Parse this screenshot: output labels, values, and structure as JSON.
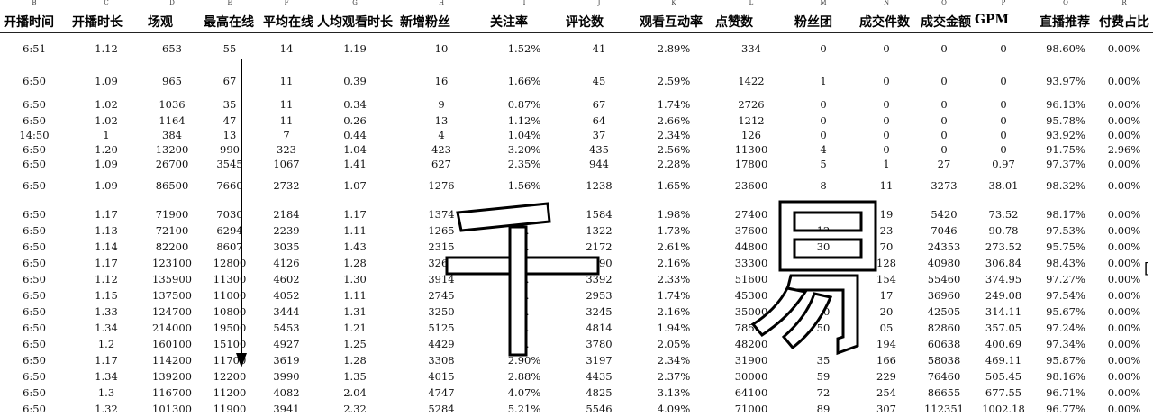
{
  "column_letters": [
    "B",
    "C",
    "D",
    "E",
    "F",
    "G",
    "H",
    "I",
    "J",
    "K",
    "L",
    "M",
    "N",
    "O",
    "P",
    "Q",
    "R"
  ],
  "headers": [
    "开播时间",
    "开播时长",
    "场观",
    "最高在线",
    "平均在线",
    "人均观看时长",
    "新增粉丝",
    "关注率",
    "评论数",
    "观看互动率",
    "点赞数",
    "粉丝团",
    "成交件数",
    "成交金额",
    "GPM",
    "直播推荐",
    "付费占比"
  ],
  "rows": [
    [
      "6:51",
      "1.12",
      "653",
      "55",
      "14",
      "1.19",
      "10",
      "1.52%",
      "41",
      "2.89%",
      "334",
      "0",
      "0",
      "0",
      "0",
      "98.60%",
      "0.00%"
    ],
    [
      "6:50",
      "1.09",
      "965",
      "67",
      "11",
      "0.39",
      "16",
      "1.66%",
      "45",
      "2.59%",
      "1422",
      "1",
      "0",
      "0",
      "0",
      "93.97%",
      "0.00%"
    ],
    [
      "6:50",
      "1.02",
      "1036",
      "35",
      "11",
      "0.34",
      "9",
      "0.87%",
      "67",
      "1.74%",
      "2726",
      "0",
      "0",
      "0",
      "0",
      "96.13%",
      "0.00%"
    ],
    [
      "6:50",
      "1.02",
      "1164",
      "47",
      "11",
      "0.26",
      "13",
      "1.12%",
      "64",
      "2.66%",
      "1212",
      "0",
      "0",
      "0",
      "0",
      "95.78%",
      "0.00%"
    ],
    [
      "14:50",
      "1",
      "384",
      "13",
      "7",
      "0.44",
      "4",
      "1.04%",
      "37",
      "2.34%",
      "126",
      "0",
      "0",
      "0",
      "0",
      "93.92%",
      "0.00%"
    ],
    [
      "6:50",
      "1.20",
      "13200",
      "990",
      "323",
      "1.04",
      "423",
      "3.20%",
      "435",
      "2.56%",
      "11300",
      "4",
      "0",
      "0",
      "0",
      "91.75%",
      "2.96%"
    ],
    [
      "6:50",
      "1.09",
      "26700",
      "3545",
      "1067",
      "1.41",
      "627",
      "2.35%",
      "944",
      "2.28%",
      "17800",
      "5",
      "1",
      "27",
      "0.97",
      "97.37%",
      "0.00%"
    ],
    [
      "6:50",
      "1.09",
      "86500",
      "7660",
      "2732",
      "1.07",
      "1276",
      "1.56%",
      "1238",
      "1.65%",
      "23600",
      "8",
      "11",
      "3273",
      "38.01",
      "98.32%",
      "0.00%"
    ],
    [
      "6:50",
      "1.17",
      "71900",
      "7030",
      "2184",
      "1.17",
      "1374",
      "1.90%",
      "1584",
      "1.98%",
      "27400",
      "",
      "19",
      "5420",
      "73.52",
      "98.17%",
      "0.00%"
    ],
    [
      "6:50",
      "1.13",
      "72100",
      "6294",
      "2239",
      "1.11",
      "1265",
      "2.",
      "1322",
      "1.73%",
      "37600",
      "12",
      "23",
      "7046",
      "90.78",
      "97.53%",
      "0.00%"
    ],
    [
      "6:50",
      "1.14",
      "82200",
      "8607",
      "3035",
      "1.43",
      "2315",
      "2.",
      "2172",
      "2.61%",
      "44800",
      "30",
      "70",
      "24353",
      "273.52",
      "95.75%",
      "0.00%"
    ],
    [
      "6:50",
      "1.17",
      "123100",
      "12800",
      "4126",
      "1.28",
      "3262",
      "2.",
      "3190",
      "2.16%",
      "33300",
      "",
      "128",
      "40980",
      "306.84",
      "98.43%",
      "0.00%"
    ],
    [
      "6:50",
      "1.12",
      "135900",
      "11300",
      "4602",
      "1.30",
      "3914",
      "2.",
      "3392",
      "2.33%",
      "51600",
      "61",
      "154",
      "55460",
      "374.95",
      "97.27%",
      "0.00%"
    ],
    [
      "6:50",
      "1.15",
      "137500",
      "11000",
      "4052",
      "1.11",
      "2745",
      "2.",
      "2953",
      "1.74%",
      "45300",
      "",
      "17",
      "36960",
      "249.08",
      "97.54%",
      "0.00%"
    ],
    [
      "6:50",
      "1.33",
      "124700",
      "10800",
      "3444",
      "1.31",
      "3250",
      "2.",
      "3245",
      "2.16%",
      "35000",
      "30",
      "20",
      "42505",
      "314.11",
      "95.67%",
      "0.00%"
    ],
    [
      "6:50",
      "1.34",
      "214000",
      "19500",
      "5453",
      "1.21",
      "5125",
      "2.",
      "4814",
      "1.94%",
      "78500",
      "50",
      "05",
      "82860",
      "357.05",
      "97.24%",
      "0.00%"
    ],
    [
      "6:50",
      "1.2",
      "160100",
      "15100",
      "4927",
      "1.25",
      "4429",
      "2.",
      "3780",
      "2.05%",
      "48200",
      "",
      "194",
      "60638",
      "400.69",
      "97.34%",
      "0.00%"
    ],
    [
      "6:50",
      "1.17",
      "114200",
      "11700",
      "3619",
      "1.28",
      "3308",
      "2.90%",
      "3197",
      "2.34%",
      "31900",
      "35",
      "166",
      "58038",
      "469.11",
      "95.87%",
      "0.00%"
    ],
    [
      "6:50",
      "1.34",
      "139200",
      "12200",
      "3990",
      "1.35",
      "4015",
      "2.88%",
      "4435",
      "2.37%",
      "30000",
      "59",
      "229",
      "76460",
      "505.45",
      "98.16%",
      "0.00%"
    ],
    [
      "6:50",
      "1.3",
      "116700",
      "11200",
      "4082",
      "2.04",
      "4747",
      "4.07%",
      "4825",
      "3.13%",
      "64100",
      "72",
      "254",
      "86655",
      "677.55",
      "96.71%",
      "0.00%"
    ],
    [
      "6:50",
      "1.32",
      "101300",
      "11900",
      "3941",
      "2.32",
      "5284",
      "5.21%",
      "5546",
      "4.09%",
      "71000",
      "89",
      "307",
      "112351",
      "1002.18",
      "96.77%",
      "0.00%"
    ]
  ],
  "watermark": {
    "text": "千易"
  }
}
